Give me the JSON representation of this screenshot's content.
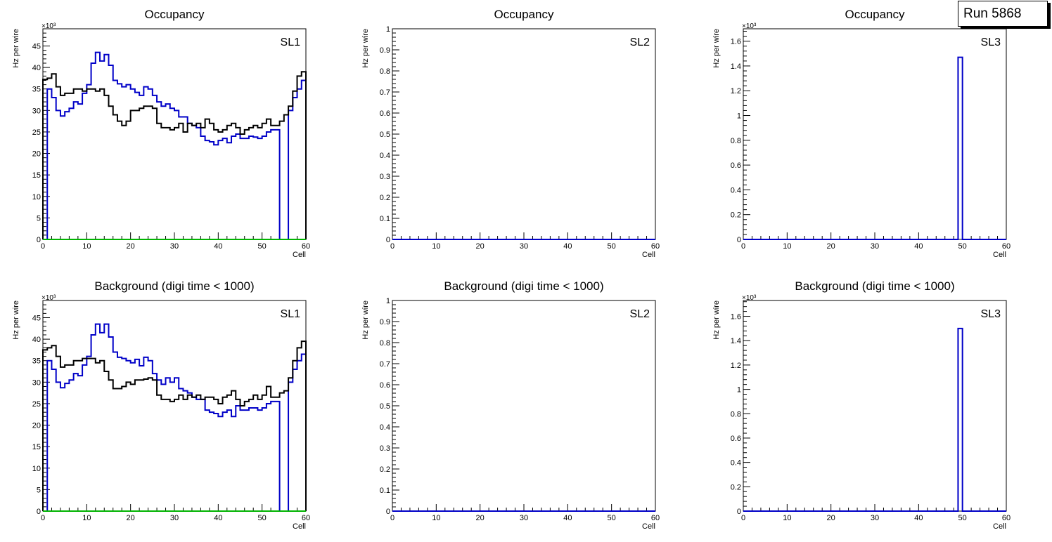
{
  "run_label": "Run 5868",
  "colors": {
    "black": "#000000",
    "blue": "#0000c8",
    "green": "#00b400"
  },
  "chart_data": [
    {
      "type": "histogram",
      "title": "Occupancy",
      "label": "SL1",
      "xlabel": "Cell",
      "ylabel": "Hz per wire",
      "exponent": "×10³",
      "xlim": [
        0,
        60
      ],
      "ylim": [
        0,
        49
      ],
      "xticks": [
        0,
        10,
        20,
        30,
        40,
        50,
        60
      ],
      "yticks": [
        0,
        5,
        10,
        15,
        20,
        25,
        30,
        35,
        40,
        45
      ],
      "series": [
        {
          "name": "blue",
          "color": "#0000c8",
          "values": [
            0,
            35,
            33,
            30,
            28.7,
            29.7,
            30.5,
            32,
            31.5,
            34,
            36,
            41,
            43.5,
            41.5,
            43,
            40.5,
            37,
            36.2,
            35.5,
            36,
            35,
            34.2,
            33.5,
            35.5,
            35,
            33.5,
            32,
            31,
            31.5,
            30.5,
            30,
            28.5,
            28.5,
            27,
            26.5,
            26,
            24,
            23,
            22.7,
            22,
            23,
            23.5,
            22.5,
            24,
            24.5,
            23.5,
            23.5,
            24,
            23.8,
            23.5,
            24,
            25,
            25.5,
            25.5,
            0,
            0,
            30,
            33,
            35,
            37
          ]
        },
        {
          "name": "black",
          "color": "#000000",
          "values": [
            37.2,
            37.5,
            38.5,
            35.5,
            33.5,
            34,
            34,
            35,
            35,
            34.5,
            35,
            35,
            34.5,
            35,
            33.5,
            31,
            29,
            27.5,
            26.5,
            27.5,
            30,
            30,
            30.5,
            31,
            31,
            30.5,
            27,
            26,
            26,
            25.5,
            26,
            27,
            25,
            27,
            26.5,
            27,
            26,
            28,
            27,
            25.5,
            25,
            25.5,
            26.5,
            27,
            26,
            24.5,
            25.5,
            26,
            26.5,
            26,
            27,
            28,
            26.5,
            26.5,
            27.5,
            29,
            31,
            34.5,
            38,
            39
          ]
        },
        {
          "name": "green",
          "color": "#00b400",
          "values": [
            0,
            0,
            0,
            0,
            0,
            0,
            0,
            0,
            0,
            0,
            0,
            0,
            0,
            0,
            0,
            0,
            0,
            0,
            0,
            0,
            0,
            0,
            0,
            0,
            0,
            0,
            0,
            0,
            0,
            0,
            0,
            0,
            0,
            0,
            0,
            0,
            0,
            0,
            0,
            0,
            0,
            0,
            0,
            0,
            0,
            0,
            0,
            0,
            0,
            0,
            0,
            0,
            0,
            0,
            0,
            0,
            0,
            0,
            0,
            0
          ]
        }
      ]
    },
    {
      "type": "histogram",
      "title": "Occupancy",
      "label": "SL2",
      "xlabel": "Cell",
      "ylabel": "Hz per wire",
      "exponent": "",
      "xlim": [
        0,
        60
      ],
      "ylim": [
        0,
        1
      ],
      "xticks": [
        0,
        10,
        20,
        30,
        40,
        50,
        60
      ],
      "yticks": [
        0,
        0.1,
        0.2,
        0.3,
        0.4,
        0.5,
        0.6,
        0.7,
        0.8,
        0.9,
        1
      ],
      "series": [
        {
          "name": "blue",
          "color": "#0000c8",
          "values": [
            0,
            0,
            0,
            0,
            0,
            0,
            0,
            0,
            0,
            0,
            0,
            0,
            0,
            0,
            0,
            0,
            0,
            0,
            0,
            0,
            0,
            0,
            0,
            0,
            0,
            0,
            0,
            0,
            0,
            0,
            0,
            0,
            0,
            0,
            0,
            0,
            0,
            0,
            0,
            0,
            0,
            0,
            0,
            0,
            0,
            0,
            0,
            0,
            0,
            0,
            0,
            0,
            0,
            0,
            0,
            0,
            0,
            0,
            0,
            0
          ]
        }
      ]
    },
    {
      "type": "histogram",
      "title": "Occupancy",
      "label": "SL3",
      "xlabel": "Cell",
      "ylabel": "Hz per wire",
      "exponent": "×10³",
      "xlim": [
        0,
        60
      ],
      "ylim": [
        0,
        1.7
      ],
      "xticks": [
        0,
        10,
        20,
        30,
        40,
        50,
        60
      ],
      "yticks": [
        0,
        0.2,
        0.4,
        0.6,
        0.8,
        1,
        1.2,
        1.4,
        1.6
      ],
      "series": [
        {
          "name": "blue",
          "color": "#0000c8",
          "values": [
            0,
            0,
            0,
            0,
            0,
            0,
            0,
            0,
            0,
            0,
            0,
            0,
            0,
            0,
            0,
            0,
            0,
            0,
            0,
            0,
            0,
            0,
            0,
            0,
            0,
            0,
            0,
            0,
            0,
            0,
            0,
            0,
            0,
            0,
            0,
            0,
            0,
            0,
            0,
            0,
            0,
            0,
            0,
            0,
            0,
            0,
            0,
            0,
            0,
            1.47,
            0,
            0,
            0,
            0,
            0,
            0,
            0,
            0,
            0,
            0
          ]
        }
      ]
    },
    {
      "type": "histogram",
      "title": "Background (digi time < 1000)",
      "label": "SL1",
      "xlabel": "Cell",
      "ylabel": "Hz per wire",
      "exponent": "×10³",
      "xlim": [
        0,
        60
      ],
      "ylim": [
        0,
        49
      ],
      "xticks": [
        0,
        10,
        20,
        30,
        40,
        50,
        60
      ],
      "yticks": [
        0,
        5,
        10,
        15,
        20,
        25,
        30,
        35,
        40,
        45
      ],
      "series": [
        {
          "name": "blue",
          "color": "#0000c8",
          "values": [
            0,
            35,
            33,
            30,
            28.7,
            29.7,
            30.5,
            32,
            31.5,
            34,
            36,
            41,
            43.5,
            41.5,
            43.5,
            40.5,
            37,
            35.8,
            35.5,
            35,
            34.5,
            35.3,
            33.8,
            35.8,
            35,
            32,
            30.5,
            29.5,
            31,
            30,
            31,
            28.5,
            28,
            27.5,
            26.5,
            26,
            26,
            23.5,
            23,
            22.7,
            22,
            23,
            23.5,
            22,
            24.5,
            23.5,
            23.5,
            24,
            24,
            23.5,
            24,
            25,
            25.5,
            25.5,
            0,
            0,
            30,
            33,
            35,
            36.5
          ]
        },
        {
          "name": "black",
          "color": "#000000",
          "values": [
            37.5,
            38,
            38.5,
            36,
            33.5,
            34,
            34,
            35,
            35,
            35.5,
            35.5,
            35.5,
            34.5,
            35,
            32.5,
            30.5,
            28.5,
            28.5,
            29,
            30,
            29.5,
            30.5,
            30.5,
            30.7,
            31,
            30.5,
            27,
            26,
            26,
            25.5,
            26,
            27,
            26,
            27,
            26.5,
            27,
            26,
            26.5,
            26.5,
            26,
            25,
            26.5,
            27,
            28,
            26,
            24.5,
            25.5,
            26,
            27,
            26,
            27,
            29,
            26.5,
            26.5,
            27.5,
            28,
            31,
            35,
            38,
            39.5
          ]
        },
        {
          "name": "green",
          "color": "#00b400",
          "values": [
            0,
            0,
            0,
            0,
            0,
            0,
            0,
            0,
            0,
            0,
            0,
            0,
            0,
            0,
            0,
            0,
            0,
            0,
            0,
            0,
            0,
            0,
            0,
            0,
            0,
            0,
            0,
            0,
            0,
            0,
            0,
            0,
            0,
            0,
            0,
            0,
            0,
            0,
            0,
            0,
            0,
            0,
            0,
            0,
            0,
            0,
            0,
            0,
            0,
            0,
            0,
            0,
            0,
            0,
            0,
            0,
            0,
            0,
            0,
            0
          ]
        }
      ]
    },
    {
      "type": "histogram",
      "title": "Background (digi time < 1000)",
      "label": "SL2",
      "xlabel": "Cell",
      "ylabel": "Hz per wire",
      "exponent": "",
      "xlim": [
        0,
        60
      ],
      "ylim": [
        0,
        1
      ],
      "xticks": [
        0,
        10,
        20,
        30,
        40,
        50,
        60
      ],
      "yticks": [
        0,
        0.1,
        0.2,
        0.3,
        0.4,
        0.5,
        0.6,
        0.7,
        0.8,
        0.9,
        1
      ],
      "series": [
        {
          "name": "blue",
          "color": "#0000c8",
          "values": [
            0,
            0,
            0,
            0,
            0,
            0,
            0,
            0,
            0,
            0,
            0,
            0,
            0,
            0,
            0,
            0,
            0,
            0,
            0,
            0,
            0,
            0,
            0,
            0,
            0,
            0,
            0,
            0,
            0,
            0,
            0,
            0,
            0,
            0,
            0,
            0,
            0,
            0,
            0,
            0,
            0,
            0,
            0,
            0,
            0,
            0,
            0,
            0,
            0,
            0,
            0,
            0,
            0,
            0,
            0,
            0,
            0,
            0,
            0,
            0
          ]
        }
      ]
    },
    {
      "type": "histogram",
      "title": "Background (digi time < 1000)",
      "label": "SL3",
      "xlabel": "Cell",
      "ylabel": "Hz per wire",
      "exponent": "×10³",
      "xlim": [
        0,
        60
      ],
      "ylim": [
        0,
        1.73
      ],
      "xticks": [
        0,
        10,
        20,
        30,
        40,
        50,
        60
      ],
      "yticks": [
        0,
        0.2,
        0.4,
        0.6,
        0.8,
        1,
        1.2,
        1.4,
        1.6
      ],
      "series": [
        {
          "name": "blue",
          "color": "#0000c8",
          "values": [
            0,
            0,
            0,
            0,
            0,
            0,
            0,
            0,
            0,
            0,
            0,
            0,
            0,
            0,
            0,
            0,
            0,
            0,
            0,
            0,
            0,
            0,
            0,
            0,
            0,
            0,
            0,
            0,
            0,
            0,
            0,
            0,
            0,
            0,
            0,
            0,
            0,
            0,
            0,
            0,
            0,
            0,
            0,
            0,
            0,
            0,
            0,
            0,
            0,
            1.5,
            0,
            0,
            0,
            0,
            0,
            0,
            0,
            0,
            0,
            0
          ]
        }
      ]
    }
  ]
}
